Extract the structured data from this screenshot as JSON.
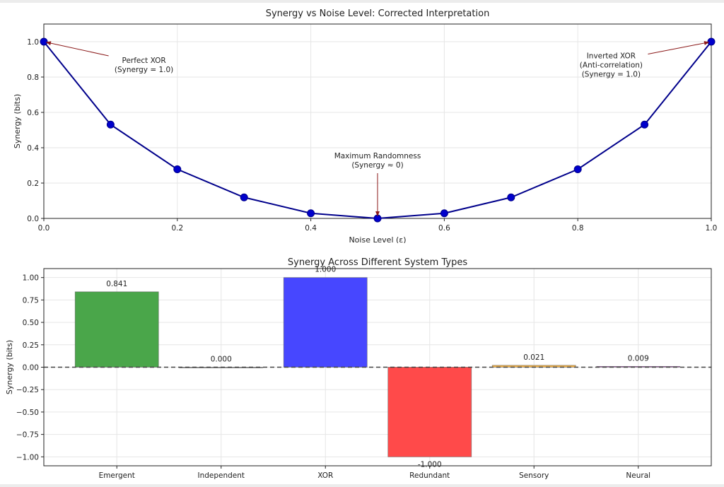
{
  "chart_data": [
    {
      "type": "line",
      "title": "Synergy vs Noise Level: Corrected Interpretation",
      "xlabel": "Noise Level (ε)",
      "ylabel": "Synergy (bits)",
      "xlim": [
        0,
        1
      ],
      "ylim": [
        0,
        1.1
      ],
      "xticks": [
        "0.0",
        "0.2",
        "0.4",
        "0.6",
        "0.8",
        "1.0"
      ],
      "yticks": [
        "0.0",
        "0.2",
        "0.4",
        "0.6",
        "0.8",
        "1.0"
      ],
      "grid": true,
      "color": "#0000cc",
      "line_color": "#00008b",
      "series": [
        {
          "x": [
            0.0,
            0.1,
            0.2,
            0.3,
            0.4,
            0.5,
            0.6,
            0.7,
            0.8,
            0.9,
            1.0
          ],
          "values": [
            1.0,
            0.531,
            0.278,
            0.119,
            0.029,
            0.0,
            0.029,
            0.119,
            0.278,
            0.531,
            1.0
          ]
        }
      ],
      "annotations": [
        {
          "lines": [
            "Perfect XOR",
            "(Synergy = 1.0)"
          ],
          "point": [
            0.0,
            1.0
          ],
          "text_pos": [
            0.15,
            0.87
          ]
        },
        {
          "lines": [
            "Maximum Randomness",
            "(Synergy ≈ 0)"
          ],
          "point": [
            0.5,
            0.0
          ],
          "text_pos": [
            0.5,
            0.33
          ]
        },
        {
          "lines": [
            "Inverted XOR",
            "(Anti-correlation)",
            "(Synergy = 1.0)"
          ],
          "point": [
            1.0,
            1.0
          ],
          "text_pos": [
            0.85,
            0.87
          ]
        }
      ]
    },
    {
      "type": "bar",
      "title": "Synergy Across Different System Types",
      "xlabel": "",
      "ylabel": "Synergy (bits)",
      "ylim": [
        -1.1,
        1.1
      ],
      "yticks": [
        "1.00",
        "0.75",
        "0.50",
        "0.25",
        "0.00",
        "−0.25",
        "−0.50",
        "−0.75",
        "−1.00"
      ],
      "grid": true,
      "categories": [
        "Emergent",
        "Independent",
        "XOR",
        "Redundant",
        "Sensory",
        "Neural"
      ],
      "values": [
        0.841,
        0.0,
        1.0,
        -1.0,
        0.021,
        0.009
      ],
      "value_labels": [
        "0.841",
        "0.000",
        "1.000",
        "-1.000",
        "0.021",
        "0.009"
      ],
      "colors": [
        "#4aa64a",
        "#888888",
        "#4747ff",
        "#ff4a4a",
        "#f2b34b",
        "#9b4aa6"
      ],
      "reference_line": 0
    }
  ]
}
